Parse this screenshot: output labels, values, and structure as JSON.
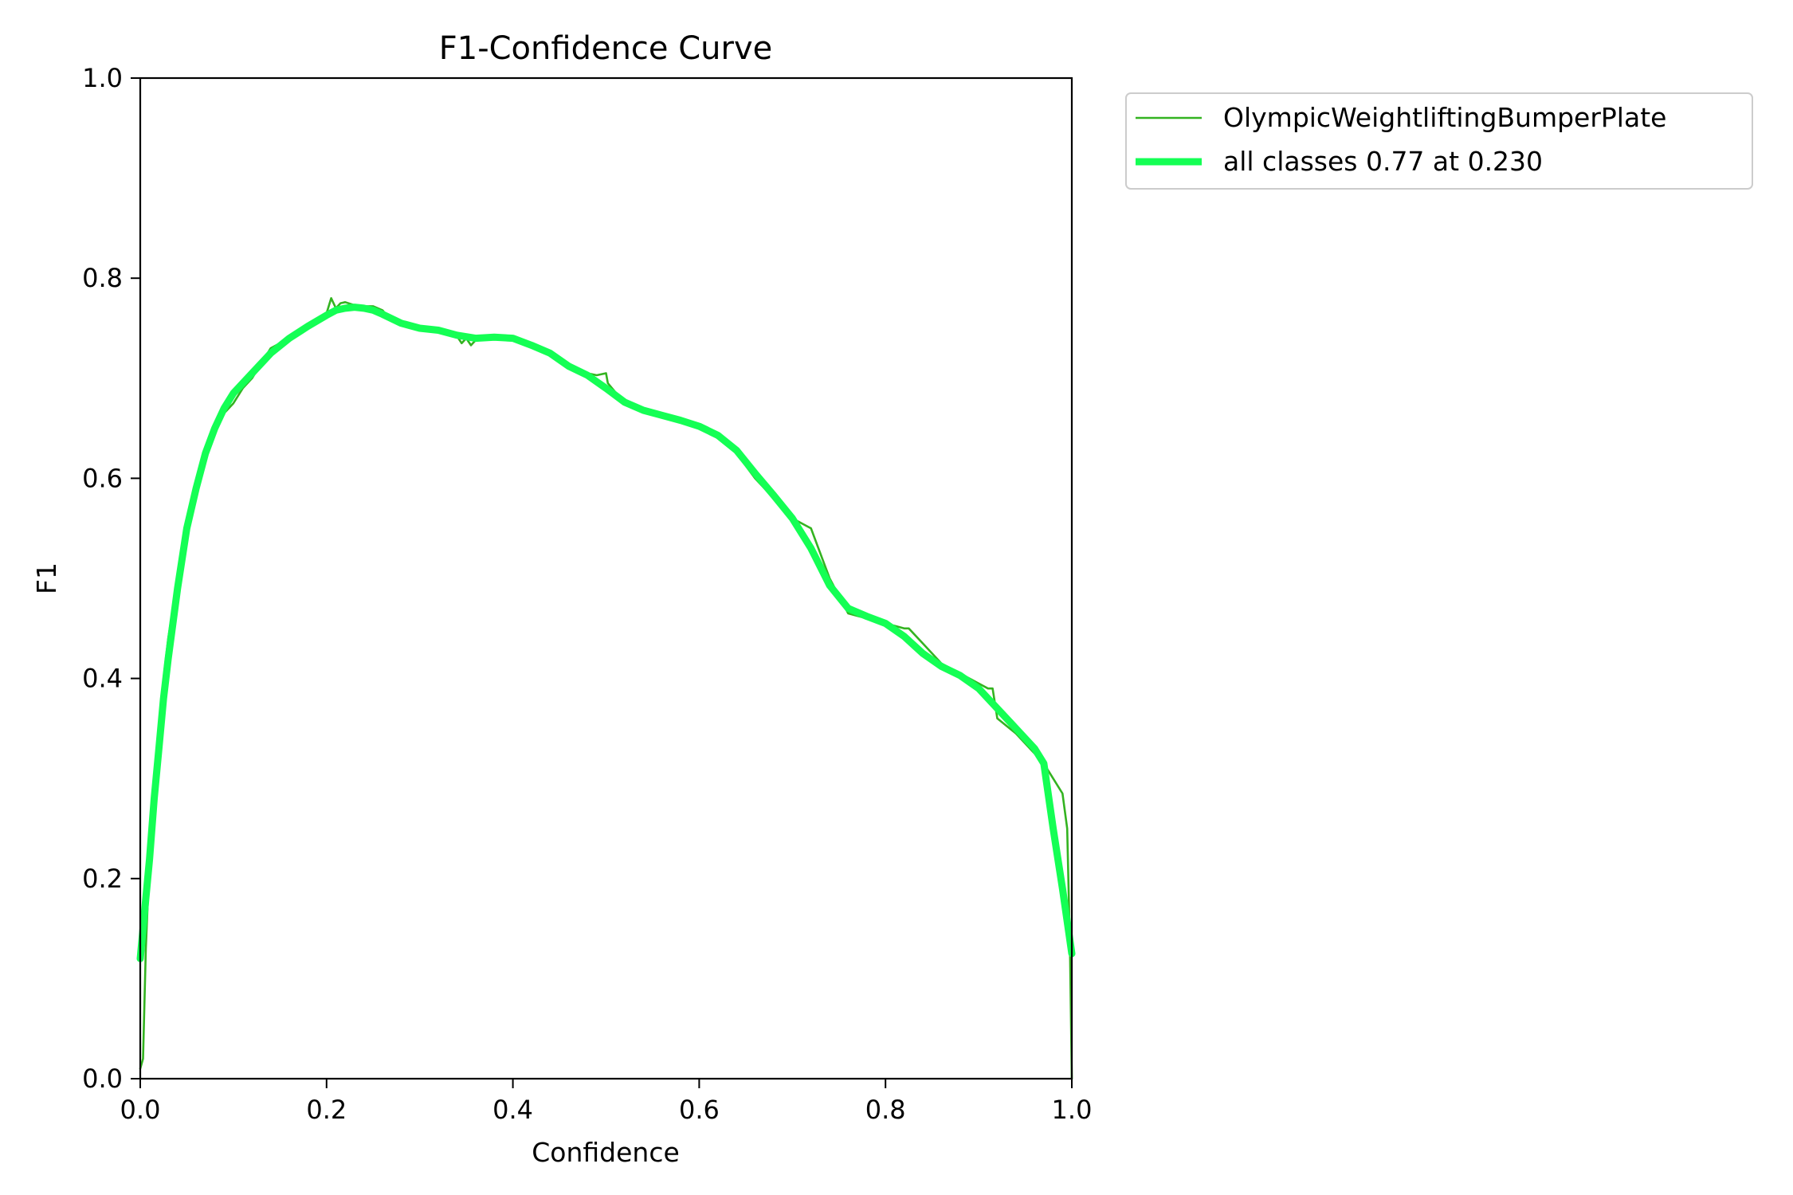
{
  "chart_data": {
    "type": "line",
    "title": "F1-Confidence Curve",
    "xlabel": "Confidence",
    "ylabel": "F1",
    "xlim": [
      0,
      1
    ],
    "ylim": [
      0,
      1
    ],
    "x_ticks": [
      "0.0",
      "0.2",
      "0.4",
      "0.6",
      "0.8",
      "1.0"
    ],
    "y_ticks": [
      "0.0",
      "0.2",
      "0.4",
      "0.6",
      "0.8",
      "1.0"
    ],
    "grid": false,
    "legend_position": "outside-top-right",
    "series": [
      {
        "name": "OlympicWeightliftingBumperPlate",
        "color": "#33b320",
        "line": "thin",
        "x": [
          0.0,
          0.003,
          0.006,
          0.01,
          0.015,
          0.02,
          0.025,
          0.03,
          0.035,
          0.04,
          0.045,
          0.05,
          0.06,
          0.07,
          0.08,
          0.09,
          0.1,
          0.11,
          0.12,
          0.13,
          0.14,
          0.15,
          0.16,
          0.17,
          0.18,
          0.19,
          0.2,
          0.205,
          0.21,
          0.215,
          0.22,
          0.23,
          0.24,
          0.25,
          0.26,
          0.27,
          0.28,
          0.3,
          0.32,
          0.34,
          0.345,
          0.35,
          0.355,
          0.36,
          0.38,
          0.4,
          0.42,
          0.44,
          0.46,
          0.48,
          0.49,
          0.5,
          0.502,
          0.52,
          0.55,
          0.58,
          0.6,
          0.62,
          0.64,
          0.66,
          0.68,
          0.7,
          0.72,
          0.74,
          0.76,
          0.78,
          0.8,
          0.82,
          0.825,
          0.84,
          0.86,
          0.88,
          0.9,
          0.91,
          0.915,
          0.92,
          0.94,
          0.96,
          0.97,
          0.98,
          0.99,
          0.995,
          0.998,
          1.0
        ],
        "y": [
          0.01,
          0.02,
          0.13,
          0.22,
          0.3,
          0.35,
          0.4,
          0.44,
          0.47,
          0.5,
          0.52,
          0.55,
          0.59,
          0.62,
          0.65,
          0.665,
          0.675,
          0.69,
          0.7,
          0.715,
          0.73,
          0.735,
          0.74,
          0.745,
          0.75,
          0.755,
          0.765,
          0.78,
          0.77,
          0.775,
          0.776,
          0.773,
          0.772,
          0.772,
          0.768,
          0.757,
          0.755,
          0.75,
          0.748,
          0.742,
          0.735,
          0.74,
          0.733,
          0.738,
          0.742,
          0.74,
          0.735,
          0.725,
          0.712,
          0.705,
          0.703,
          0.705,
          0.695,
          0.675,
          0.665,
          0.658,
          0.652,
          0.64,
          0.625,
          0.6,
          0.58,
          0.56,
          0.55,
          0.5,
          0.465,
          0.46,
          0.455,
          0.45,
          0.45,
          0.435,
          0.415,
          0.405,
          0.395,
          0.39,
          0.39,
          0.36,
          0.345,
          0.325,
          0.315,
          0.3,
          0.285,
          0.25,
          0.13,
          0.0
        ]
      },
      {
        "name": "all classes 0.77 at 0.230",
        "color": "#14ff54",
        "line": "thick",
        "x": [
          0.0,
          0.005,
          0.01,
          0.015,
          0.02,
          0.025,
          0.03,
          0.04,
          0.05,
          0.06,
          0.07,
          0.08,
          0.09,
          0.1,
          0.12,
          0.14,
          0.16,
          0.18,
          0.2,
          0.21,
          0.22,
          0.23,
          0.24,
          0.25,
          0.26,
          0.28,
          0.3,
          0.32,
          0.34,
          0.36,
          0.38,
          0.4,
          0.42,
          0.44,
          0.46,
          0.48,
          0.5,
          0.52,
          0.54,
          0.56,
          0.58,
          0.6,
          0.62,
          0.64,
          0.66,
          0.68,
          0.7,
          0.72,
          0.74,
          0.76,
          0.78,
          0.8,
          0.82,
          0.84,
          0.86,
          0.88,
          0.9,
          0.92,
          0.94,
          0.96,
          0.97,
          0.98,
          0.99,
          1.0
        ],
        "y": [
          0.12,
          0.17,
          0.22,
          0.28,
          0.33,
          0.38,
          0.42,
          0.49,
          0.55,
          0.59,
          0.625,
          0.65,
          0.67,
          0.685,
          0.705,
          0.725,
          0.74,
          0.752,
          0.763,
          0.768,
          0.77,
          0.771,
          0.77,
          0.768,
          0.764,
          0.755,
          0.75,
          0.748,
          0.743,
          0.74,
          0.741,
          0.74,
          0.733,
          0.725,
          0.712,
          0.703,
          0.69,
          0.676,
          0.668,
          0.663,
          0.658,
          0.652,
          0.643,
          0.628,
          0.605,
          0.583,
          0.56,
          0.53,
          0.493,
          0.47,
          0.462,
          0.455,
          0.442,
          0.425,
          0.412,
          0.403,
          0.39,
          0.37,
          0.35,
          0.33,
          0.315,
          0.25,
          0.19,
          0.125
        ]
      }
    ]
  }
}
